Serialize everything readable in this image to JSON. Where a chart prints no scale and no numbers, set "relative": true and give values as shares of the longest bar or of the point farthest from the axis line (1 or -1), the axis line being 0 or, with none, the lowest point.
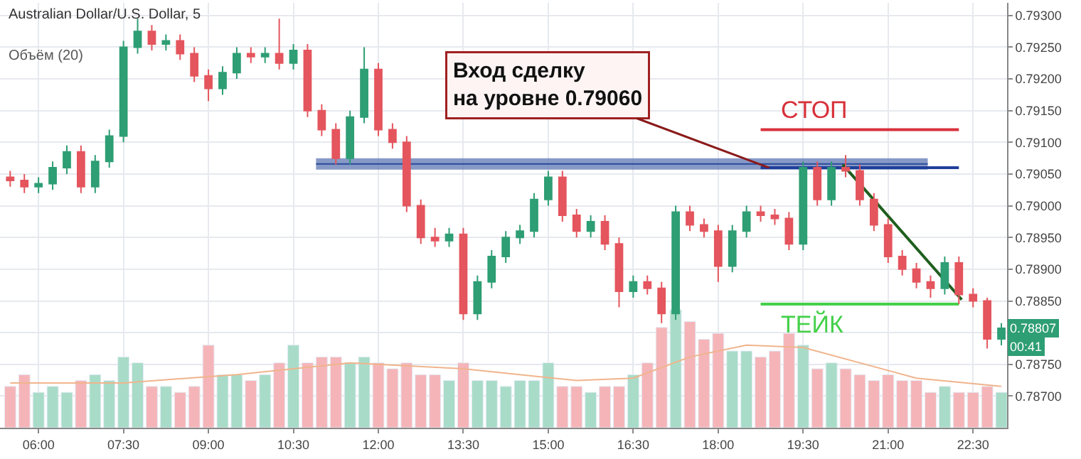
{
  "chart_data": [
    {
      "type": "candlestick",
      "title": "Australian Dollar/U.S. Dollar, 5",
      "xlim": [
        5.32,
        23.1
      ],
      "xticks": [
        {
          "value": 6,
          "label": "06:00"
        },
        {
          "value": 7.5,
          "label": "07:30"
        },
        {
          "value": 9,
          "label": "09:00"
        },
        {
          "value": 10.5,
          "label": "10:30"
        },
        {
          "value": 12,
          "label": "12:00"
        },
        {
          "value": 13.5,
          "label": "13:30"
        },
        {
          "value": 15,
          "label": "15:00"
        },
        {
          "value": 16.5,
          "label": "16:30"
        },
        {
          "value": 18,
          "label": "18:00"
        },
        {
          "value": 19.5,
          "label": "19:30"
        },
        {
          "value": 21,
          "label": "21:00"
        },
        {
          "value": 22.5,
          "label": "22:30"
        }
      ],
      "ylim": [
        0.7865,
        0.7932
      ],
      "yticks": [
        {
          "value": 0.787,
          "label": "0.78700"
        },
        {
          "value": 0.7875,
          "label": "0.78750"
        },
        {
          "value": 0.788,
          "label": null
        },
        {
          "value": 0.7885,
          "label": "0.78850"
        },
        {
          "value": 0.789,
          "label": "0.78900"
        },
        {
          "value": 0.7895,
          "label": "0.78950"
        },
        {
          "value": 0.79,
          "label": "0.79000"
        },
        {
          "value": 0.7905,
          "label": "0.79050"
        },
        {
          "value": 0.791,
          "label": "0.79100"
        },
        {
          "value": 0.7915,
          "label": "0.79150"
        },
        {
          "value": 0.792,
          "label": "0.79200"
        },
        {
          "value": 0.7925,
          "label": "0.79250"
        },
        {
          "value": 0.793,
          "label": "0.79300"
        }
      ],
      "grid": true,
      "annotations": [
        {
          "text": "Вход сделку\nна уровне 0.79060",
          "x": 18.9,
          "y": 0.7906
        },
        {
          "text": "0.78807",
          "x": 23.0,
          "y": 0.78807
        },
        "00:41"
      ],
      "series": [
        {
          "colors": [
            "#e4555d",
            "#e4555d",
            "#2e9e74",
            "#2e9e74",
            "#2e9e74",
            "#e4555d",
            "#2e9e74",
            "#2e9e74",
            "#2e9e74",
            "#2e9e74",
            "#e4555d",
            "#2e9e74",
            "#e4555d",
            "#e4555d",
            "#e4555d",
            "#2e9e74",
            "#2e9e74",
            "#e4555d",
            "#2e9e74",
            "#e4555d",
            "#2e9e74",
            "#e4555d",
            "#e4555d",
            "#e4555d",
            "#2e9e74",
            "#2e9e74",
            "#e4555d",
            "#e4555d",
            "#e4555d",
            "#e4555d",
            "#e4555d",
            "#2e9e74",
            "#e4555d",
            "#2e9e74",
            "#2e9e74",
            "#2e9e74",
            "#2e9e74",
            "#2e9e74",
            "#2e9e74",
            "#e4555d",
            "#e4555d",
            "#2e9e74",
            "#e4555d",
            "#e4555d",
            "#2e9e74",
            "#e4555d",
            "#e4555d",
            "#2e9e74",
            "#e4555d",
            "#e4555d",
            "#e4555d",
            "#2e9e74",
            "#2e9e74",
            "#e4555d",
            "#e4555d",
            "#e4555d",
            "#2e9e74",
            "#e4555d",
            "#2e9e74",
            "#e4555d",
            "#e4555d",
            "#e4555d",
            "#e4555d",
            "#e4555d",
            "#e4555d",
            "#e4555d",
            "#2e9e74",
            "#e4555d",
            "#e4555d",
            "#e4555d",
            "#2e9e74"
          ],
          "x": [
            5.5,
            5.75,
            6,
            6.25,
            6.5,
            6.75,
            7,
            7.25,
            7.5,
            7.75,
            8,
            8.25,
            8.5,
            8.75,
            9,
            9.25,
            9.5,
            9.75,
            10,
            10.25,
            10.5,
            10.75,
            11,
            11.25,
            11.5,
            11.75,
            12,
            12.25,
            12.5,
            12.75,
            13,
            13.25,
            13.5,
            13.75,
            14,
            14.25,
            14.5,
            14.75,
            15,
            15.25,
            15.5,
            15.75,
            16,
            16.25,
            16.5,
            16.75,
            17,
            17.25,
            17.5,
            17.75,
            18,
            18.25,
            18.5,
            18.75,
            19,
            19.25,
            19.5,
            19.75,
            20,
            20.25,
            20.5,
            20.75,
            21,
            21.25,
            21.5,
            21.75,
            22,
            22.25,
            22.5,
            22.75,
            23
          ],
          "ohlc": [
            [
              0.79045,
              0.79055,
              0.7903,
              0.7904
            ],
            [
              0.7904,
              0.7905,
              0.7902,
              0.7903
            ],
            [
              0.7903,
              0.79045,
              0.7902,
              0.79035
            ],
            [
              0.79035,
              0.7907,
              0.79025,
              0.7906
            ],
            [
              0.7906,
              0.79095,
              0.7905,
              0.79085
            ],
            [
              0.79085,
              0.79095,
              0.7902,
              0.7903
            ],
            [
              0.7903,
              0.7908,
              0.7902,
              0.7907
            ],
            [
              0.7907,
              0.7912,
              0.7906,
              0.7911
            ],
            [
              0.7911,
              0.7926,
              0.791,
              0.7925
            ],
            [
              0.7925,
              0.79295,
              0.7924,
              0.79275
            ],
            [
              0.79275,
              0.79285,
              0.79245,
              0.79255
            ],
            [
              0.79255,
              0.7927,
              0.79245,
              0.7926
            ],
            [
              0.7926,
              0.7927,
              0.7923,
              0.7924
            ],
            [
              0.7924,
              0.7925,
              0.79195,
              0.79205
            ],
            [
              0.79205,
              0.79215,
              0.79165,
              0.79185
            ],
            [
              0.79185,
              0.7922,
              0.79175,
              0.7921
            ],
            [
              0.7921,
              0.7925,
              0.792,
              0.7924
            ],
            [
              0.7924,
              0.7925,
              0.79225,
              0.79235
            ],
            [
              0.79235,
              0.7925,
              0.79225,
              0.7924
            ],
            [
              0.7924,
              0.79295,
              0.79215,
              0.79225
            ],
            [
              0.79225,
              0.79255,
              0.79215,
              0.79245
            ],
            [
              0.79245,
              0.79255,
              0.7914,
              0.7915
            ],
            [
              0.7915,
              0.7916,
              0.7911,
              0.7912
            ],
            [
              0.7912,
              0.7913,
              0.79065,
              0.79075
            ],
            [
              0.79075,
              0.7915,
              0.79065,
              0.7914
            ],
            [
              0.7914,
              0.7925,
              0.7913,
              0.79215
            ],
            [
              0.79215,
              0.79225,
              0.7911,
              0.7912
            ],
            [
              0.7912,
              0.7913,
              0.7909,
              0.791
            ],
            [
              0.791,
              0.7911,
              0.7899,
              0.79
            ],
            [
              0.79,
              0.7901,
              0.7894,
              0.7895
            ],
            [
              0.7895,
              0.78965,
              0.78935,
              0.78945
            ],
            [
              0.78945,
              0.78965,
              0.78935,
              0.78955
            ],
            [
              0.78955,
              0.78965,
              0.7882,
              0.7883
            ],
            [
              0.7883,
              0.7889,
              0.7882,
              0.7888
            ],
            [
              0.7888,
              0.7893,
              0.7887,
              0.7892
            ],
            [
              0.7892,
              0.7896,
              0.7891,
              0.7895
            ],
            [
              0.7895,
              0.7897,
              0.7894,
              0.7896
            ],
            [
              0.7896,
              0.7902,
              0.7895,
              0.7901
            ],
            [
              0.7901,
              0.79055,
              0.79,
              0.79045
            ],
            [
              0.79045,
              0.79055,
              0.78975,
              0.78985
            ],
            [
              0.78985,
              0.78995,
              0.7895,
              0.7896
            ],
            [
              0.7896,
              0.78985,
              0.7895,
              0.78975
            ],
            [
              0.78975,
              0.78985,
              0.7893,
              0.7894
            ],
            [
              0.7894,
              0.7895,
              0.7884,
              0.78865
            ],
            [
              0.78865,
              0.7889,
              0.78855,
              0.7888
            ],
            [
              0.7888,
              0.7889,
              0.7886,
              0.7887
            ],
            [
              0.7887,
              0.7888,
              0.78815,
              0.7883
            ],
            [
              0.7883,
              0.79,
              0.7882,
              0.7899
            ],
            [
              0.7899,
              0.79,
              0.7896,
              0.7897
            ],
            [
              0.7897,
              0.7898,
              0.7895,
              0.7896
            ],
            [
              0.7896,
              0.7897,
              0.7888,
              0.78905
            ],
            [
              0.78905,
              0.7897,
              0.78895,
              0.7896
            ],
            [
              0.7896,
              0.79,
              0.7895,
              0.7899
            ],
            [
              0.7899,
              0.79,
              0.78975,
              0.78985
            ],
            [
              0.78985,
              0.78995,
              0.7897,
              0.7898
            ],
            [
              0.7898,
              0.7899,
              0.7893,
              0.7894
            ],
            [
              0.7894,
              0.7907,
              0.7893,
              0.7906
            ],
            [
              0.7906,
              0.7907,
              0.79,
              0.7901
            ],
            [
              0.7901,
              0.7907,
              0.79,
              0.7906
            ],
            [
              0.7906,
              0.7908,
              0.79045,
              0.79055
            ],
            [
              0.79055,
              0.79065,
              0.79,
              0.7901
            ],
            [
              0.7901,
              0.7902,
              0.7896,
              0.7897
            ],
            [
              0.7897,
              0.7898,
              0.7891,
              0.7892
            ],
            [
              0.7892,
              0.7893,
              0.7889,
              0.789
            ],
            [
              0.789,
              0.7891,
              0.7887,
              0.7888
            ],
            [
              0.7888,
              0.7889,
              0.78855,
              0.7887
            ],
            [
              0.7887,
              0.7892,
              0.7886,
              0.7891
            ],
            [
              0.7891,
              0.7892,
              0.78845,
              0.7886
            ],
            [
              0.7886,
              0.7887,
              0.7884,
              0.7885
            ],
            [
              0.7885,
              0.78855,
              0.78775,
              0.7879
            ],
            [
              0.7879,
              0.78815,
              0.7878,
              0.78807
            ]
          ]
        },
        {
          "type": "line",
          "color": "#2a4a9a",
          "x": [
            10.9,
            21.7
          ],
          "values": [
            0.79066,
            0.79066
          ],
          "lower": [
            0.79057,
            0.79057
          ],
          "upper": [
            0.79075,
            0.79075
          ]
        },
        {
          "type": "line",
          "color": "#1f3f9a",
          "x": [
            18.75,
            22.25
          ],
          "values": [
            0.7906,
            0.7906
          ]
        },
        {
          "type": "line",
          "name": "СТОП",
          "color": "#d8303a",
          "x": [
            18.75,
            22.25
          ],
          "values": [
            0.7912,
            0.7912
          ]
        },
        {
          "type": "line",
          "name": "ТЕЙК",
          "color": "#44d04a",
          "x": [
            18.75,
            22.25
          ],
          "values": [
            0.78845,
            0.78845
          ]
        },
        {
          "type": "line",
          "color": "#1e5e1e",
          "x": [
            20.2,
            22.3
          ],
          "values": [
            0.79065,
            0.78852
          ]
        }
      ]
    },
    {
      "type": "bar",
      "relative": true,
      "xlim": [
        5.32,
        23.1
      ],
      "tick_labels": false,
      "series": [
        {
          "x": [
            5.5,
            5.75,
            6,
            6.25,
            6.5,
            6.75,
            7,
            7.25,
            7.5,
            7.75,
            8,
            8.25,
            8.5,
            8.75,
            9,
            9.25,
            9.5,
            9.75,
            10,
            10.25,
            10.5,
            10.75,
            11,
            11.25,
            11.5,
            11.75,
            12,
            12.25,
            12.5,
            12.75,
            13,
            13.25,
            13.5,
            13.75,
            14,
            14.25,
            14.5,
            14.75,
            15,
            15.25,
            15.5,
            15.75,
            16,
            16.25,
            16.5,
            16.75,
            17,
            17.25,
            17.5,
            17.75,
            18,
            18.25,
            18.5,
            18.75,
            19,
            19.25,
            19.5,
            19.75,
            20,
            20.25,
            20.5,
            20.75,
            21,
            21.25,
            21.5,
            21.75,
            22,
            22.25,
            22.5,
            22.75,
            23
          ],
          "values": [
            0.35,
            0.45,
            0.3,
            0.35,
            0.3,
            0.4,
            0.45,
            0.4,
            0.6,
            0.55,
            0.35,
            0.35,
            0.3,
            0.35,
            0.7,
            0.45,
            0.45,
            0.4,
            0.45,
            0.55,
            0.7,
            0.55,
            0.6,
            0.6,
            0.55,
            0.6,
            0.55,
            0.5,
            0.55,
            0.45,
            0.45,
            0.4,
            0.55,
            0.4,
            0.4,
            0.35,
            0.4,
            0.4,
            0.55,
            0.35,
            0.35,
            0.3,
            0.35,
            0.35,
            0.45,
            0.55,
            0.85,
            1.0,
            0.9,
            0.75,
            0.8,
            0.65,
            0.65,
            0.6,
            0.65,
            0.8,
            0.7,
            0.5,
            0.55,
            0.5,
            0.45,
            0.4,
            0.45,
            0.4,
            0.4,
            0.3,
            0.35,
            0.3,
            0.3,
            0.35,
            0.3
          ],
          "colors": [
            "#f5b5b8",
            "#f5b5b8",
            "#a8dcc8",
            "#a8dcc8",
            "#a8dcc8",
            "#f5b5b8",
            "#a8dcc8",
            "#a8dcc8",
            "#a8dcc8",
            "#a8dcc8",
            "#f5b5b8",
            "#a8dcc8",
            "#f5b5b8",
            "#f5b5b8",
            "#f5b5b8",
            "#a8dcc8",
            "#a8dcc8",
            "#f5b5b8",
            "#a8dcc8",
            "#f5b5b8",
            "#a8dcc8",
            "#f5b5b8",
            "#f5b5b8",
            "#f5b5b8",
            "#a8dcc8",
            "#a8dcc8",
            "#f5b5b8",
            "#f5b5b8",
            "#f5b5b8",
            "#f5b5b8",
            "#f5b5b8",
            "#a8dcc8",
            "#f5b5b8",
            "#a8dcc8",
            "#a8dcc8",
            "#a8dcc8",
            "#a8dcc8",
            "#a8dcc8",
            "#a8dcc8",
            "#f5b5b8",
            "#f5b5b8",
            "#a8dcc8",
            "#f5b5b8",
            "#f5b5b8",
            "#a8dcc8",
            "#f5b5b8",
            "#f5b5b8",
            "#a8dcc8",
            "#f5b5b8",
            "#f5b5b8",
            "#f5b5b8",
            "#a8dcc8",
            "#a8dcc8",
            "#f5b5b8",
            "#f5b5b8",
            "#f5b5b8",
            "#a8dcc8",
            "#f5b5b8",
            "#a8dcc8",
            "#f5b5b8",
            "#f5b5b8",
            "#f5b5b8",
            "#f5b5b8",
            "#f5b5b8",
            "#f5b5b8",
            "#f5b5b8",
            "#a8dcc8",
            "#f5b5b8",
            "#f5b5b8",
            "#f5b5b8",
            "#a8dcc8"
          ]
        },
        {
          "type": "line",
          "name": "Объём (20)",
          "color": "#f0b48c",
          "x": [
            5.5,
            7.5,
            9.5,
            11.5,
            13.5,
            15.5,
            16.5,
            17.5,
            18.5,
            19.5,
            20.5,
            21.5,
            23
          ],
          "values": [
            0.38,
            0.38,
            0.45,
            0.55,
            0.5,
            0.4,
            0.42,
            0.6,
            0.7,
            0.68,
            0.55,
            0.42,
            0.35
          ]
        }
      ]
    }
  ]
}
